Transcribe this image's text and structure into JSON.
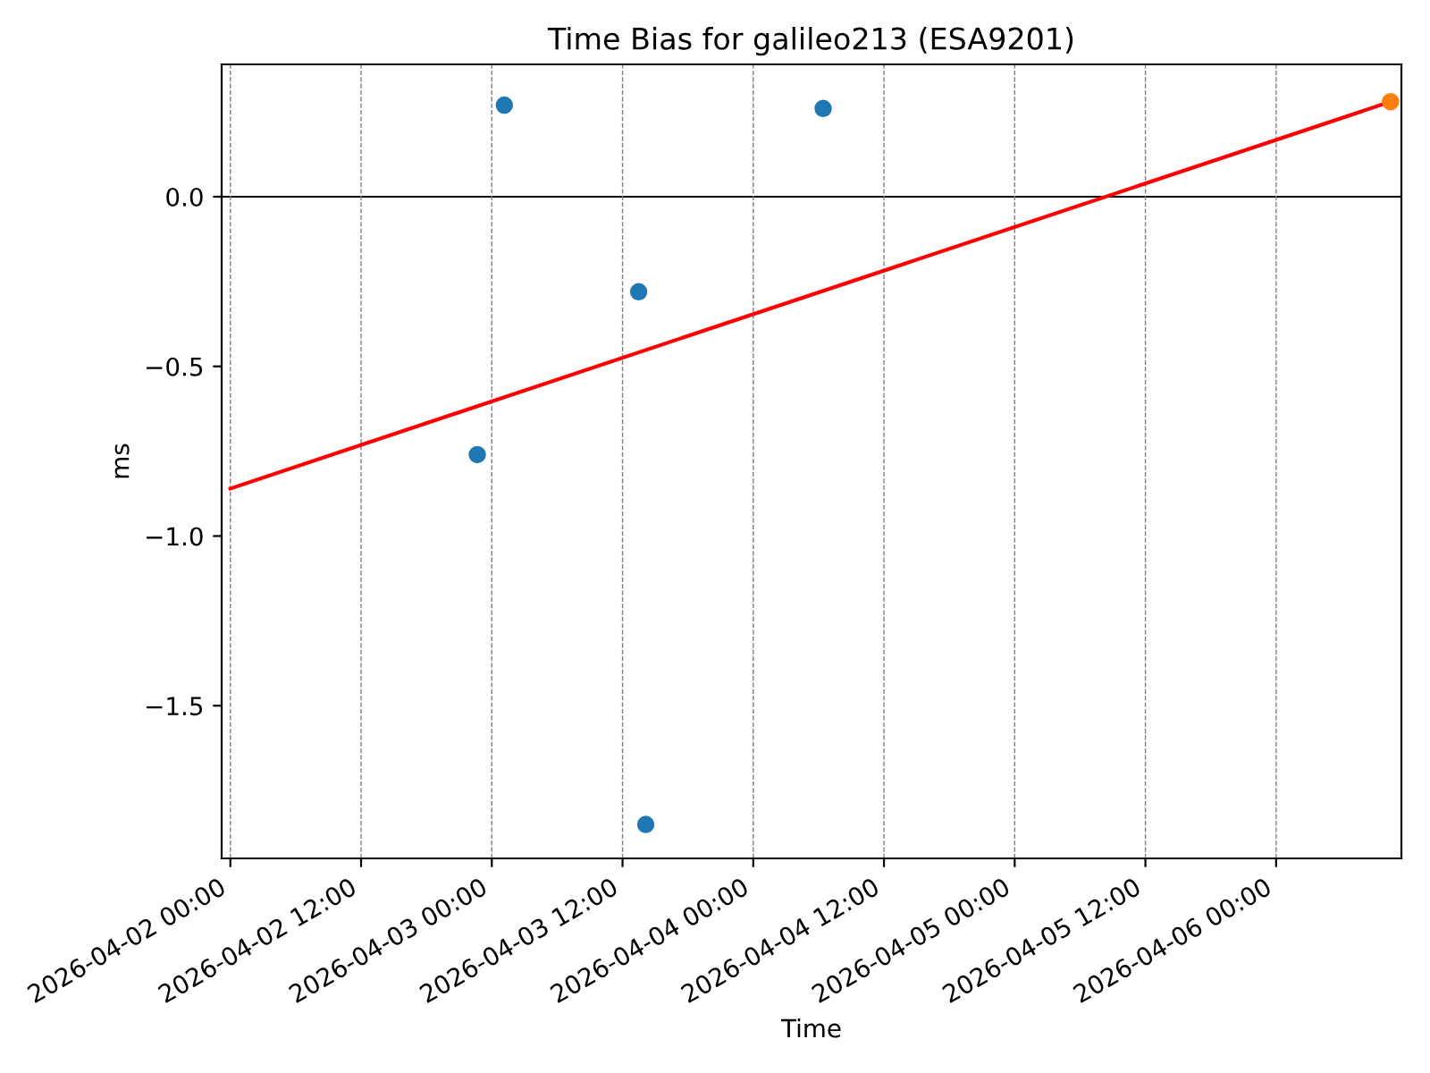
{
  "chart_data": {
    "type": "scatter",
    "title": "Time Bias for galileo213 (ESA9201)",
    "xlabel": "Time",
    "ylabel": "ms",
    "series": [
      {
        "color": "#1f77b4",
        "x": [
          "2026-04-02T22:40",
          "2026-04-03T01:09",
          "2026-04-03T13:29",
          "2026-04-03T14:08",
          "2026-04-04T06:25"
        ],
        "values": [
          -0.76,
          0.27,
          -0.28,
          -1.85,
          0.26
        ]
      },
      {
        "color": "#ff7f0e",
        "x": [
          "2026-04-06T10:30"
        ],
        "values": [
          0.28
        ]
      },
      {
        "type": "line",
        "marker": "none",
        "color": "#ff0000",
        "x": [
          "2026-04-02T00:00",
          "2026-04-06T10:30"
        ],
        "values": [
          -0.86,
          0.28
        ]
      }
    ],
    "xlim": [
      "2026-04-01T23:12",
      "2026-04-06T11:30"
    ],
    "xticks": [
      {
        "value": "2026-04-02T00:00",
        "label": "2026-04-02 00:00"
      },
      {
        "value": "2026-04-02T12:00",
        "label": "2026-04-02 12:00"
      },
      {
        "value": "2026-04-03T00:00",
        "label": "2026-04-03 00:00"
      },
      {
        "value": "2026-04-03T12:00",
        "label": "2026-04-03 12:00"
      },
      {
        "value": "2026-04-04T00:00",
        "label": "2026-04-04 00:00"
      },
      {
        "value": "2026-04-04T12:00",
        "label": "2026-04-04 12:00"
      },
      {
        "value": "2026-04-05T00:00",
        "label": "2026-04-05 00:00"
      },
      {
        "value": "2026-04-05T12:00",
        "label": "2026-04-05 12:00"
      },
      {
        "value": "2026-04-06T00:00",
        "label": "2026-04-06 00:00"
      }
    ],
    "ylim": [
      -1.95,
      0.39
    ],
    "yticks": [
      {
        "value": -1.5,
        "label": "−1.5"
      },
      {
        "value": -1.0,
        "label": "−1.0"
      },
      {
        "value": -0.5,
        "label": "−0.5"
      },
      {
        "value": 0.0,
        "label": "0.0"
      }
    ],
    "grid": "x",
    "marker": "circle",
    "ref_lines": [
      {
        "axis": "y",
        "value": 0,
        "color": "#000000",
        "line_style": "solid"
      }
    ]
  }
}
